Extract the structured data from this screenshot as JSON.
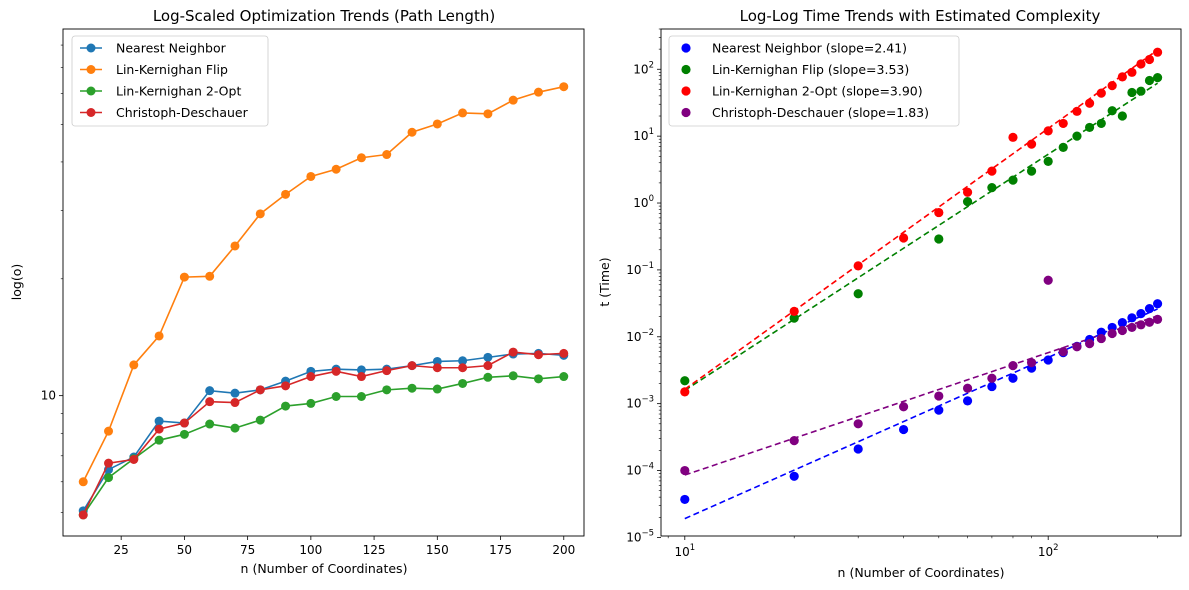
{
  "chart_data": [
    {
      "type": "line",
      "title": "Log-Scaled Optimization Trends (Path Length)",
      "xlabel": "n (Number of Coordinates)",
      "ylabel": "log(o)",
      "yscale": "log",
      "xlim": [
        2,
        208
      ],
      "ylim": [
        4.35,
        88
      ],
      "xticks": [
        "25",
        "50",
        "75",
        "100",
        "125",
        "150",
        "175",
        "200"
      ],
      "yticks": [
        "10"
      ],
      "grid": false,
      "legend": "top-left",
      "x": [
        10,
        20,
        30,
        40,
        50,
        60,
        70,
        80,
        90,
        100,
        110,
        120,
        130,
        140,
        150,
        160,
        170,
        180,
        190,
        200
      ],
      "series": [
        {
          "name": "Nearest Neighbor",
          "color": "#1f77b4",
          "values": [
            5.05,
            6.45,
            6.95,
            8.6,
            8.5,
            10.3,
            10.15,
            10.35,
            10.9,
            11.55,
            11.7,
            11.65,
            11.7,
            11.95,
            12.25,
            12.3,
            12.55,
            12.8,
            12.85,
            12.7
          ]
        },
        {
          "name": "Lin-Kernighan Flip",
          "color": "#ff7f0e",
          "values": [
            6.0,
            8.1,
            12.0,
            14.25,
            20.2,
            20.3,
            24.3,
            29.4,
            33.0,
            36.7,
            38.3,
            41.0,
            41.8,
            47.7,
            50.1,
            53.5,
            53.2,
            57.7,
            60.5,
            62.5
          ]
        },
        {
          "name": "Lin-Kernighan 2-Opt",
          "color": "#2ca02c",
          "values": [
            4.93,
            6.15,
            6.88,
            7.68,
            7.95,
            8.45,
            8.25,
            8.65,
            9.4,
            9.55,
            9.95,
            9.95,
            10.35,
            10.45,
            10.4,
            10.75,
            11.15,
            11.25,
            11.05,
            11.2
          ]
        },
        {
          "name": "Christoph-Deschauer",
          "color": "#d62728",
          "values": [
            4.93,
            6.7,
            6.85,
            8.2,
            8.5,
            9.65,
            9.6,
            10.35,
            10.6,
            11.2,
            11.55,
            11.2,
            11.6,
            11.95,
            11.8,
            11.8,
            11.95,
            12.95,
            12.75,
            12.85
          ]
        }
      ]
    },
    {
      "type": "scatter",
      "title": "Log-Log Time Trends with Estimated Complexity",
      "xlabel": "n (Number of Coordinates)",
      "ylabel": "t (Time)",
      "xscale": "log",
      "yscale": "log",
      "xlim": [
        8.6,
        232
      ],
      "ylim": [
        1.05e-05,
        400
      ],
      "xticks": [
        {
          "base": "10",
          "exp": "1"
        },
        {
          "base": "10",
          "exp": "2"
        }
      ],
      "yticks": [
        {
          "base": "10",
          "exp": "−5"
        },
        {
          "base": "10",
          "exp": "−4"
        },
        {
          "base": "10",
          "exp": "−3"
        },
        {
          "base": "10",
          "exp": "−2"
        },
        {
          "base": "10",
          "exp": "−1"
        },
        {
          "base": "10",
          "exp": "0"
        },
        {
          "base": "10",
          "exp": "1"
        },
        {
          "base": "10",
          "exp": "2"
        }
      ],
      "grid": false,
      "legend": "top-left",
      "x": [
        10,
        20,
        30,
        40,
        50,
        60,
        70,
        80,
        90,
        100,
        110,
        120,
        130,
        140,
        150,
        160,
        170,
        180,
        190,
        200
      ],
      "series": [
        {
          "name": "Nearest Neighbor (slope=2.41)",
          "color": "#0000ff",
          "fit_color": "#0000ff",
          "values": [
            3.7e-05,
            8.2e-05,
            0.00021,
            0.00041,
            0.0008,
            0.0011,
            0.0018,
            0.0024,
            0.0034,
            0.0045,
            0.0058,
            0.0072,
            0.0091,
            0.0117,
            0.0138,
            0.0163,
            0.0192,
            0.0222,
            0.0264,
            0.0312
          ],
          "fit": [
            1.91e-05,
            0.0002051
          ]
        },
        {
          "name": "Lin-Kernighan Flip (slope=3.53)",
          "color": "#008000",
          "fit_color": "#008000",
          "values": [
            0.0022,
            0.019,
            0.044,
            null,
            0.29,
            1.05,
            1.7,
            2.2,
            3.0,
            4.2,
            6.8,
            10.0,
            13.5,
            15.5,
            24.0,
            20.0,
            45.0,
            47.0,
            68.0,
            75.0
          ],
          "fit": [
            0.00158,
            0.01828
          ]
        },
        {
          "name": "Lin-Kernighan 2-Opt (slope=3.90)",
          "color": "#ff0000",
          "fit_color": "#ff0000",
          "values": [
            0.0015,
            0.024,
            0.115,
            0.3,
            0.72,
            1.45,
            3.0,
            9.6,
            7.6,
            12.0,
            15.5,
            23.5,
            31.0,
            44.0,
            57.0,
            77.0,
            90.0,
            120.0,
            140.0,
            180.0
          ],
          "fit": [
            0.00164,
            0.01308
          ]
        },
        {
          "name": "Christoph-Deschauer (slope=1.83)",
          "color": "#800080",
          "fit_color": "#800080",
          "values": [
            0.0001,
            0.00028,
            0.0005,
            0.0009,
            0.0013,
            0.0017,
            0.0024,
            0.0037,
            0.0041,
            0.07,
            0.006,
            0.0071,
            0.0079,
            0.0094,
            0.0112,
            0.0124,
            0.0138,
            0.0151,
            0.0165,
            0.0182
          ],
          "fit": [
            8.56e-05,
            0.000371
          ]
        }
      ]
    }
  ]
}
